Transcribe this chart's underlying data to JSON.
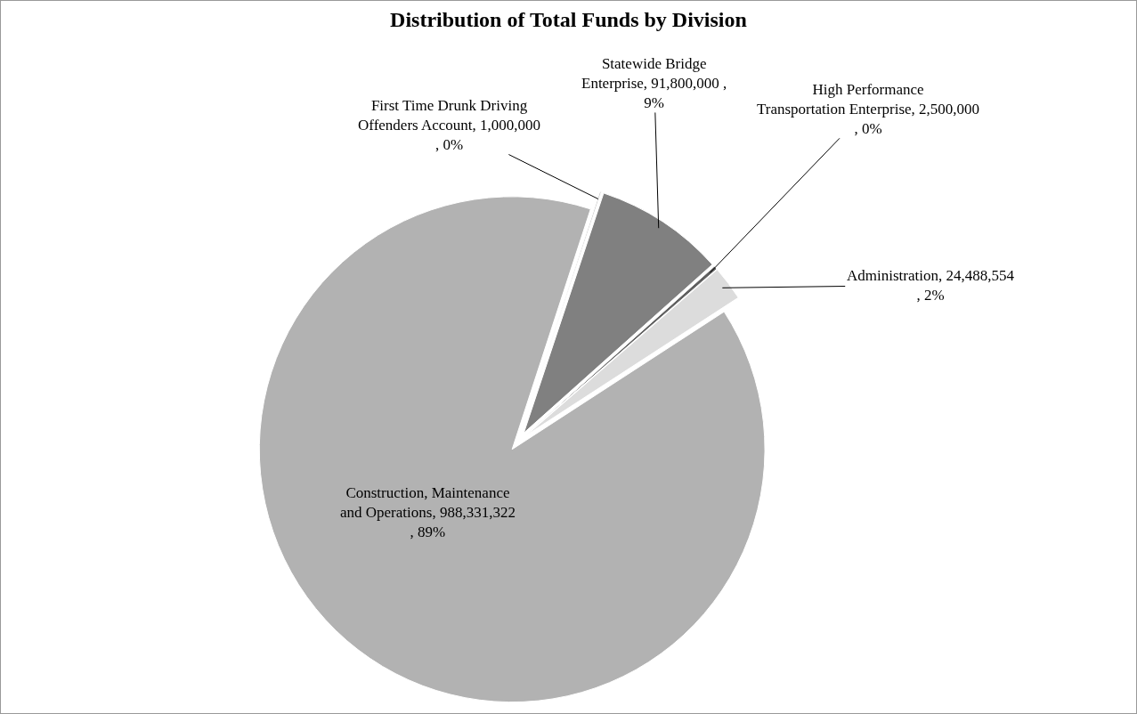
{
  "chart_data": {
    "type": "pie",
    "title": "Distribution of Total Funds by Division",
    "categories": [
      "Construction, Maintenance and Operations",
      "First Time Drunk Driving Offenders Account",
      "Statewide Bridge Enterprise",
      "High Performance Transportation Enterprise",
      "Administration"
    ],
    "values": [
      988331322,
      1000000,
      91800000,
      2500000,
      24488554
    ],
    "value_labels": [
      "988,331,322 , 89%",
      "1,000,000 , 0%",
      "91,800,000 , 9%",
      "2,500,000 , 0%",
      "24,488,554 , 2%"
    ],
    "colors": [
      "#b2b2b2",
      "#c6c6c6",
      "#808080",
      "#606060",
      "#dcdcdc"
    ],
    "legend": false
  }
}
